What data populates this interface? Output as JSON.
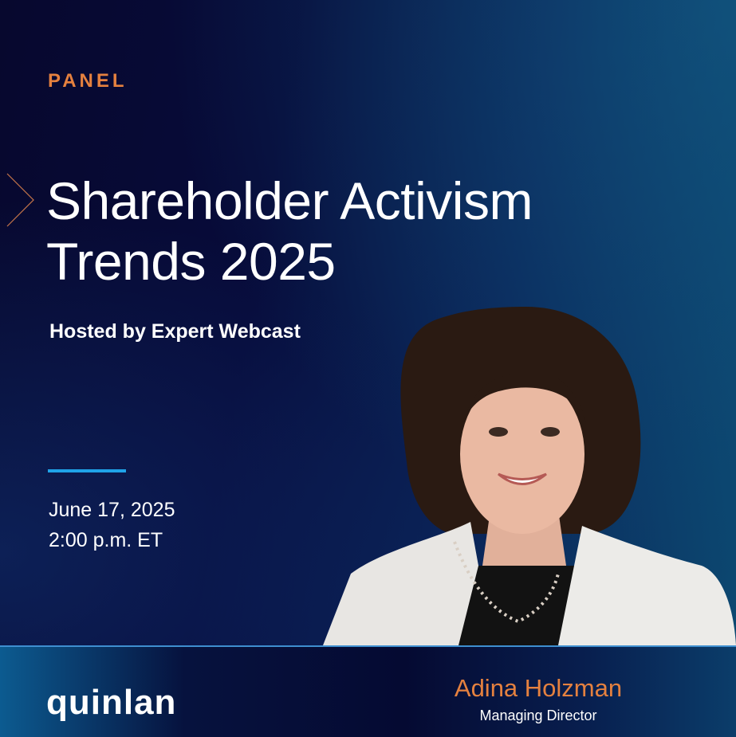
{
  "eyebrow": "PANEL",
  "title_line1": "Shareholder Activism",
  "title_line2": "Trends 2025",
  "host": "Hosted by Expert Webcast",
  "date": "June 17, 2025",
  "time": "2:00 p.m. ET",
  "speaker": {
    "name": "Adina Holzman",
    "role": "Managing Director"
  },
  "logo": "quinlan",
  "colors": {
    "accent": "#e5813f",
    "rule": "#1fa3e8",
    "background": "#070b3a"
  }
}
